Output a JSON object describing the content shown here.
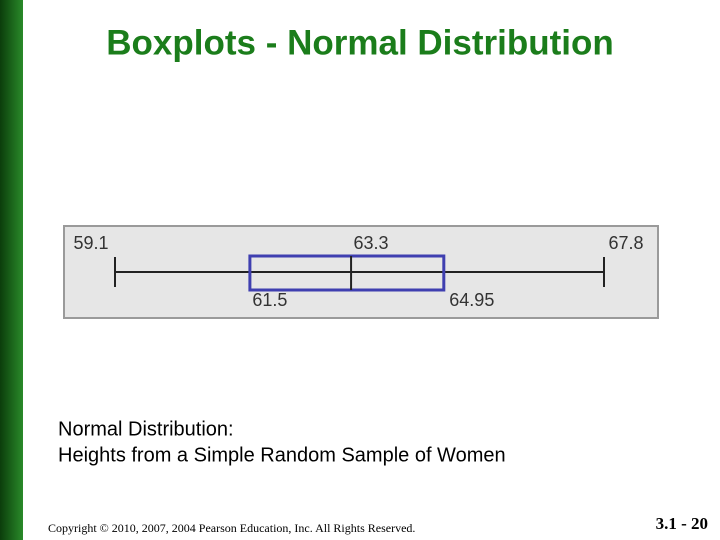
{
  "title": "Boxplots - Normal Distribution",
  "chart_data": {
    "type": "boxplot",
    "stats": {
      "min": 59.1,
      "q1": 61.5,
      "median": 63.3,
      "q3": 64.95,
      "max": 67.8
    },
    "color": "#3f3fb0",
    "whisker_color": "#222222"
  },
  "caption": [
    "Normal Distribution:",
    "Heights from a Simple Random Sample of Women"
  ],
  "footer": {
    "copyright": "Copyright © 2010, 2007, 2004 Pearson Education, Inc. All Rights Reserved.",
    "slide_number": "3.1 - 20"
  }
}
